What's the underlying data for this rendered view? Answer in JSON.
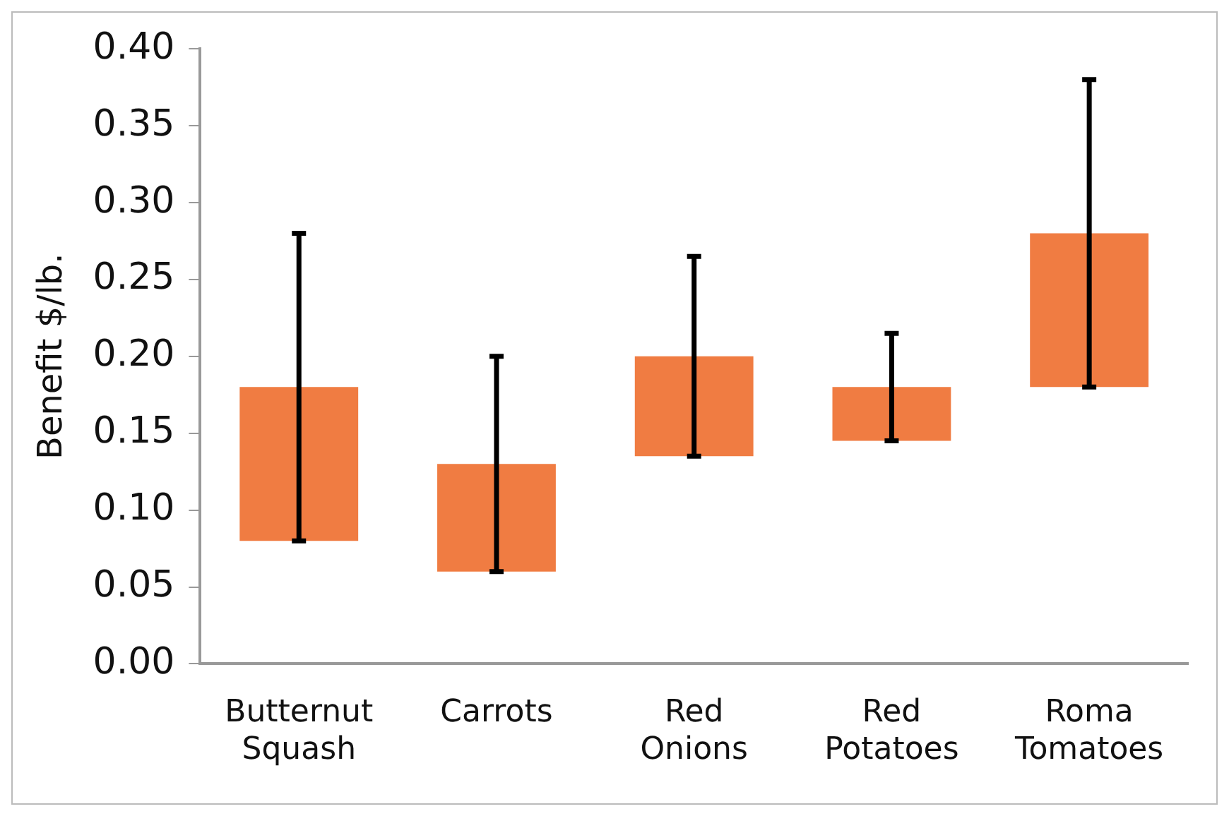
{
  "chart_data": {
    "type": "bar",
    "ylabel": "Benefit $/lb.",
    "categories": [
      "Butternut Squash",
      "Carrots",
      "Red Onions",
      "Red Potatoes",
      "Roma Tomatoes"
    ],
    "values": [
      0.1,
      0.07,
      0.065,
      0.035,
      0.1
    ],
    "base": [
      0.08,
      0.06,
      0.135,
      0.145,
      0.18
    ],
    "errors": [
      [
        0.08,
        0.28
      ],
      [
        0.06,
        0.2
      ],
      [
        0.135,
        0.265
      ],
      [
        0.145,
        0.215
      ],
      [
        0.18,
        0.38
      ]
    ],
    "color": "#f07c42",
    "ylim": [
      0,
      0.4
    ],
    "yticks": [
      {
        "value": 0,
        "label": "0.00"
      },
      {
        "value": 0.05,
        "label": "0.05"
      },
      {
        "value": 0.1,
        "label": "0.10"
      },
      {
        "value": 0.15,
        "label": "0.15"
      },
      {
        "value": 0.2,
        "label": "0.20"
      },
      {
        "value": 0.25,
        "label": "0.25"
      },
      {
        "value": 0.3,
        "label": "0.30"
      },
      {
        "value": 0.35,
        "label": "0.35"
      },
      {
        "value": 0.4,
        "label": "0.40"
      }
    ],
    "grid": false,
    "legend": false
  }
}
